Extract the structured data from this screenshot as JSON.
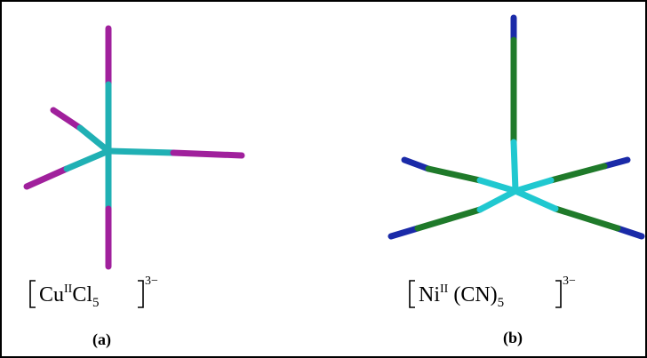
{
  "panels": [
    {
      "metal": "Cu",
      "oxidation": "II",
      "ligand": "Cl",
      "count": "5",
      "charge": "3−",
      "label": "(a)"
    },
    {
      "metal": "Ni",
      "oxidation": "II",
      "ligand": "(CN)",
      "count": "5",
      "charge": "3−",
      "label": "(b)"
    }
  ]
}
